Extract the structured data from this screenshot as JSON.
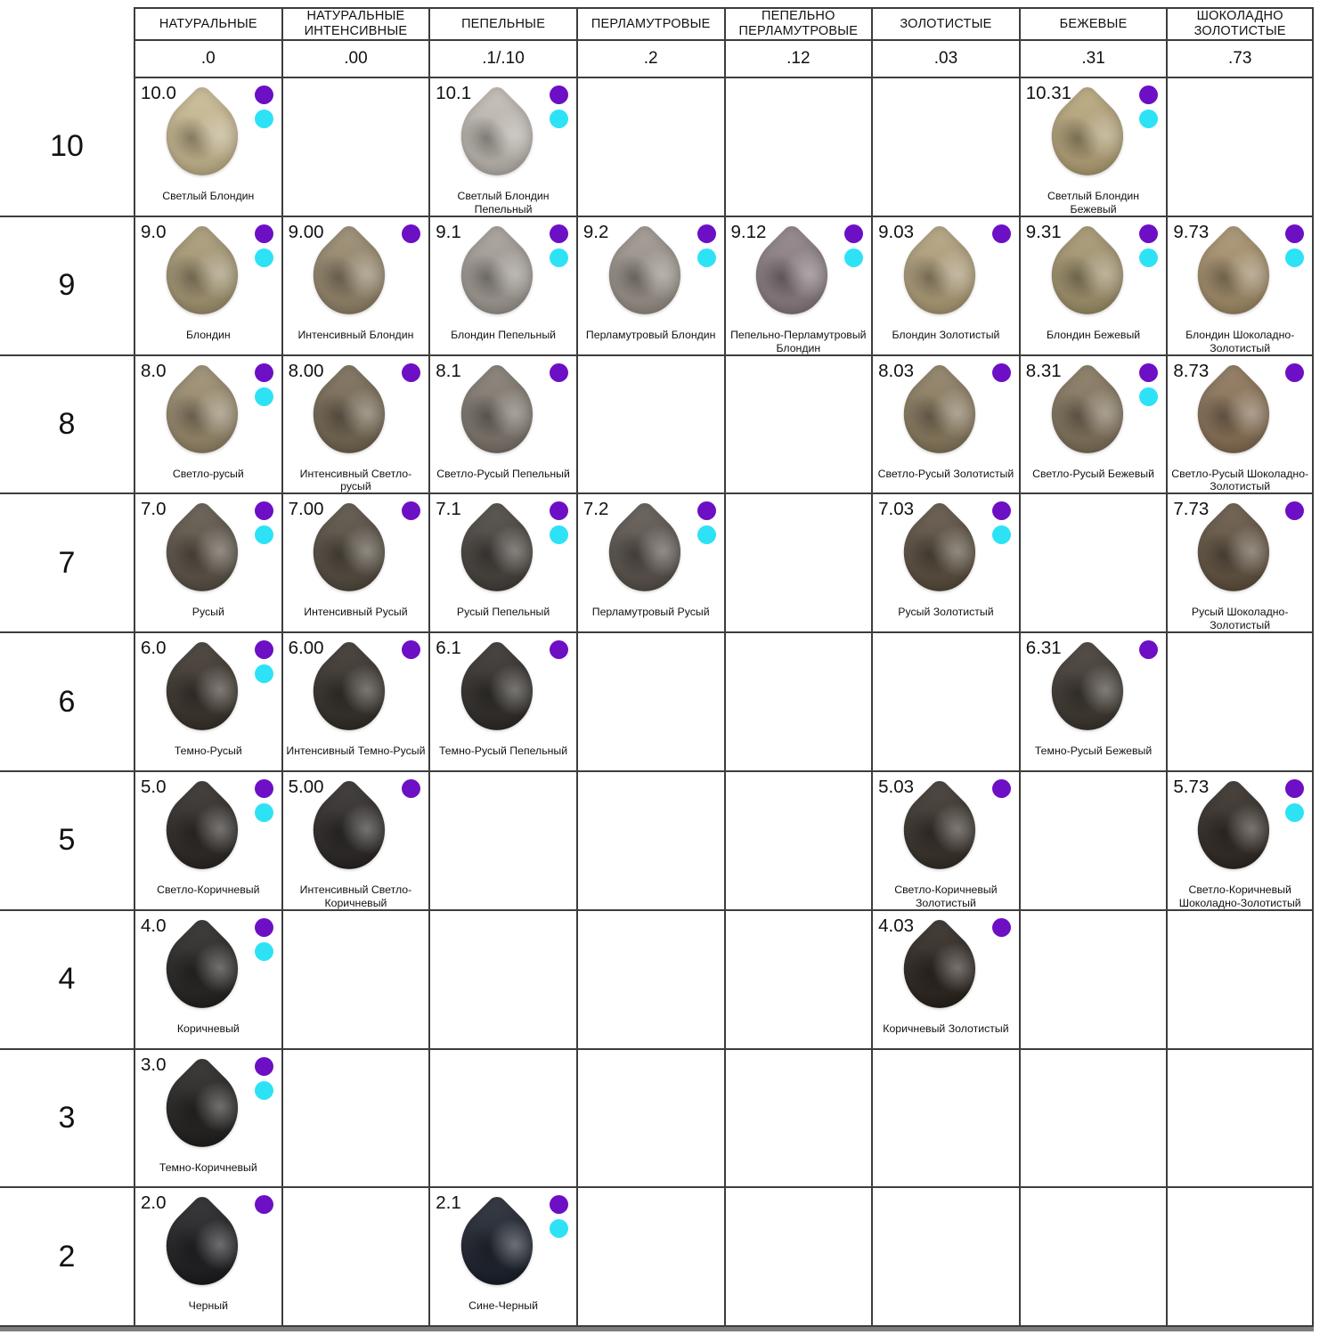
{
  "chart_data": {
    "type": "table",
    "description": "Hair color shade chart: tone levels 10-2 by reflect families",
    "grid_line_color": "#3d3d3d",
    "bottom_bar_color": "#7d7d7d",
    "dot_colors": {
      "purple": "#6d0fc4",
      "cyan": "#2ee2f6"
    },
    "columns": [
      {
        "title": "НАТУРАЛЬНЫЕ",
        "code": ".0"
      },
      {
        "title": "НАТУРАЛЬНЫЕ ИНТЕНСИВНЫЕ",
        "code": ".00"
      },
      {
        "title": "ПЕПЕЛЬНЫЕ",
        "code": ".1/.10"
      },
      {
        "title": "ПЕРЛАМУТРОВЫЕ",
        "code": ".2"
      },
      {
        "title": "ПЕПЕЛЬНО ПЕРЛАМУТРОВЫЕ",
        "code": ".12"
      },
      {
        "title": "ЗОЛОТИСТЫЕ",
        "code": ".03"
      },
      {
        "title": "БЕЖЕВЫЕ",
        "code": ".31"
      },
      {
        "title": "ШОКОЛАДНО ЗОЛОТИСТЫЕ",
        "code": ".73"
      }
    ],
    "rows": [
      {
        "level": "10",
        "cells": [
          {
            "code": "10.0",
            "name": "Светлый Блондин",
            "color": "#cbbb90",
            "dots": [
              "purple",
              "cyan"
            ]
          },
          null,
          {
            "code": "10.1",
            "name": "Светлый Блондин Пепельный",
            "color": "#c2bcb3",
            "dots": [
              "purple",
              "cyan"
            ]
          },
          null,
          null,
          null,
          {
            "code": "10.31",
            "name": "Светлый Блондин Бежевый",
            "color": "#b9a678",
            "dots": [
              "purple",
              "cyan"
            ]
          },
          null
        ]
      },
      {
        "level": "9",
        "cells": [
          {
            "code": "9.0",
            "name": "Блондин",
            "color": "#a89972",
            "dots": [
              "purple",
              "cyan"
            ]
          },
          {
            "code": "9.00",
            "name": "Интенсивный Блондин",
            "color": "#97876a",
            "dots": [
              "purple"
            ]
          },
          {
            "code": "9.1",
            "name": "Блондин Пепельный",
            "color": "#a49d96",
            "dots": [
              "purple",
              "cyan"
            ]
          },
          {
            "code": "9.2",
            "name": "Перламутровый Блондин",
            "color": "#9d948b",
            "dots": [
              "purple",
              "cyan"
            ]
          },
          {
            "code": "9.12",
            "name": "Пепельно-Перламутровый Блондин",
            "color": "#8b7d81",
            "dots": [
              "purple",
              "cyan"
            ]
          },
          {
            "code": "9.03",
            "name": "Блондин Золотистый",
            "color": "#b2a078",
            "dots": [
              "purple"
            ]
          },
          {
            "code": "9.31",
            "name": "Блондин Бежевый",
            "color": "#a5956c",
            "dots": [
              "purple",
              "cyan"
            ]
          },
          {
            "code": "9.73",
            "name": "Блондин Шоколадно-Золотистый",
            "color": "#a68f68",
            "dots": [
              "purple",
              "cyan"
            ]
          }
        ]
      },
      {
        "level": "8",
        "cells": [
          {
            "code": "8.0",
            "name": "Светло-русый",
            "color": "#9a8a6b",
            "dots": [
              "purple",
              "cyan"
            ]
          },
          {
            "code": "8.00",
            "name": "Интенсивный Светло-русый",
            "color": "#756750",
            "dots": [
              "purple"
            ]
          },
          {
            "code": "8.1",
            "name": "Светло-Русый Пепельный",
            "color": "#7f776d",
            "dots": [
              "purple"
            ]
          },
          null,
          null,
          {
            "code": "8.03",
            "name": "Светло-Русый Золотистый",
            "color": "#8b7b5d",
            "dots": [
              "purple"
            ]
          },
          {
            "code": "8.31",
            "name": "Светло-Русый Бежевый",
            "color": "#83745a",
            "dots": [
              "purple",
              "cyan"
            ]
          },
          {
            "code": "8.73",
            "name": "Светло-Русый Шоколадно-Золотистый",
            "color": "#8a7053",
            "dots": [
              "purple"
            ]
          }
        ]
      },
      {
        "level": "7",
        "cells": [
          {
            "code": "7.0",
            "name": "Русый",
            "color": "#5a5043",
            "dots": [
              "purple",
              "cyan"
            ]
          },
          {
            "code": "7.00",
            "name": "Интенсивный Русый",
            "color": "#52493c",
            "dots": [
              "purple"
            ]
          },
          {
            "code": "7.1",
            "name": "Русый Пепельный",
            "color": "#433e38",
            "dots": [
              "purple",
              "cyan"
            ]
          },
          {
            "code": "7.2",
            "name": "Перламутровый Русый",
            "color": "#585049",
            "dots": [
              "purple",
              "cyan"
            ]
          },
          null,
          {
            "code": "7.03",
            "name": "Русый Золотистый",
            "color": "#584b3b",
            "dots": [
              "purple",
              "cyan"
            ]
          },
          null,
          {
            "code": "7.73",
            "name": "Русый Шоколадно-Золотистый",
            "color": "#60503d",
            "dots": [
              "purple"
            ]
          }
        ]
      },
      {
        "level": "6",
        "cells": [
          {
            "code": "6.0",
            "name": "Темно-Русый",
            "color": "#372f27",
            "dots": [
              "purple",
              "cyan"
            ]
          },
          {
            "code": "6.00",
            "name": "Интенсивный Темно-Русый",
            "color": "#302a23",
            "dots": [
              "purple"
            ]
          },
          {
            "code": "6.1",
            "name": "Темно-Русый Пепельный",
            "color": "#2c2824",
            "dots": [
              "purple"
            ]
          },
          null,
          null,
          null,
          {
            "code": "6.31",
            "name": "Темно-Русый Бежевый",
            "color": "#3a332b",
            "dots": [
              "purple"
            ]
          },
          null
        ]
      },
      {
        "level": "5",
        "cells": [
          {
            "code": "5.0",
            "name": "Светло-Коричневый",
            "color": "#282320",
            "dots": [
              "purple",
              "cyan"
            ]
          },
          {
            "code": "5.00",
            "name": "Интенсивный Светло-Коричневый",
            "color": "#262220",
            "dots": [
              "purple"
            ]
          },
          null,
          null,
          null,
          {
            "code": "5.03",
            "name": "Светло-Коричневый Золотистый",
            "color": "#342c25",
            "dots": [
              "purple"
            ]
          },
          null,
          {
            "code": "5.73",
            "name": "Светло-Коричневый Шоколадно-Золотистый",
            "color": "#2d251f",
            "dots": [
              "purple",
              "cyan"
            ]
          }
        ]
      },
      {
        "level": "4",
        "cells": [
          {
            "code": "4.0",
            "name": "Коричневый",
            "color": "#211e1c",
            "dots": [
              "purple",
              "cyan"
            ]
          },
          null,
          null,
          null,
          null,
          {
            "code": "4.03",
            "name": "Коричневый Золотистый",
            "color": "#271f19",
            "dots": [
              "purple"
            ]
          },
          null,
          null
        ]
      },
      {
        "level": "3",
        "cells": [
          {
            "code": "3.0",
            "name": "Темно-Коричневый",
            "color": "#1e1c1a",
            "dots": [
              "purple",
              "cyan"
            ]
          },
          null,
          null,
          null,
          null,
          null,
          null,
          null
        ]
      },
      {
        "level": "2",
        "cells": [
          {
            "code": "2.0",
            "name": "Черный",
            "color": "#18171b",
            "dots": [
              "purple"
            ]
          },
          null,
          {
            "code": "2.1",
            "name": "Сине-Черный",
            "color": "#161b27",
            "dots": [
              "purple",
              "cyan"
            ]
          },
          null,
          null,
          null,
          null,
          null
        ]
      }
    ]
  }
}
